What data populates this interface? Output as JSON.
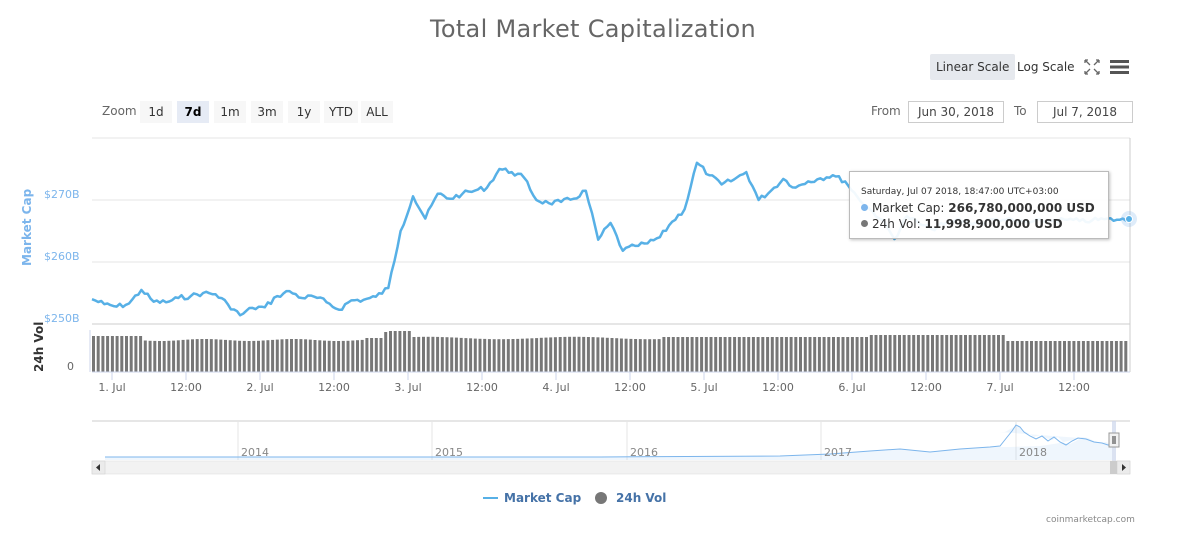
{
  "title": "Total Market Capitalization",
  "toolbar": {
    "linear_scale": "Linear Scale",
    "log_scale": "Log Scale",
    "active_scale": "Linear Scale",
    "fullscreen_icon": "fullscreen-icon",
    "menu_icon": "hamburger-menu-icon"
  },
  "range_selector": {
    "zoom_label": "Zoom",
    "buttons": [
      "1d",
      "7d",
      "1m",
      "3m",
      "1y",
      "YTD",
      "ALL"
    ],
    "active": "7d",
    "from_label": "From",
    "from_value": "Jun 30, 2018",
    "to_label": "To",
    "to_value": "Jul 7, 2018"
  },
  "tooltip": {
    "date": "Saturday, Jul 07 2018, 18:47:00 UTC+03:00",
    "market_cap_label": "Market Cap:",
    "market_cap_value": "266,780,000,000 USD",
    "vol_label": "24h Vol:",
    "vol_value": "11,998,900,000 USD"
  },
  "legend": {
    "market_cap": "Market Cap",
    "vol": "24h Vol"
  },
  "navigator": {
    "years": [
      "2014",
      "2015",
      "2016",
      "2017",
      "2018"
    ]
  },
  "credits": "coinmarketcap.com",
  "colors": {
    "market_cap": "#7cb5ec",
    "market_cap_line": "#57b0e6",
    "volume": "#777777",
    "axis_title_cap": "#7cb5ec"
  },
  "chart_data": {
    "type": "line",
    "title": "Total Market Capitalization",
    "xlabel": "",
    "ylabel": "Market Cap",
    "ylabel_secondary": "24h Vol",
    "ylim": [
      250,
      273
    ],
    "y_ticks": [
      "$250B",
      "$260B",
      "$270B"
    ],
    "y2_ticks": [
      "0"
    ],
    "x_ticks": [
      "1. Jul",
      "12:00",
      "2. Jul",
      "12:00",
      "3. Jul",
      "12:00",
      "4. Jul",
      "12:00",
      "5. Jul",
      "12:00",
      "6. Jul",
      "12:00",
      "7. Jul",
      "12:00"
    ],
    "legend": [
      "Market Cap",
      "24h Vol"
    ],
    "grid": true,
    "series": [
      {
        "name": "Market Cap (USD billions)",
        "x": [
          0,
          2,
          4,
          6,
          8,
          10,
          12,
          14,
          16,
          18,
          20,
          22,
          24,
          26,
          28,
          30,
          32,
          34,
          36,
          38,
          40,
          42,
          44,
          46,
          48,
          50,
          52,
          54,
          56,
          58,
          60,
          62,
          64,
          66,
          68,
          70,
          72,
          74,
          76,
          78,
          80,
          82,
          84,
          86,
          88,
          90,
          92,
          94,
          96,
          98,
          100,
          102,
          104,
          106,
          108,
          110,
          112,
          114,
          116,
          118,
          120,
          122,
          124,
          126,
          128,
          130,
          132,
          134,
          136,
          138,
          140,
          142,
          144,
          146,
          148,
          150,
          152,
          154,
          156,
          158,
          160,
          162,
          164,
          166,
          168
        ],
        "values": [
          254.0,
          253.2,
          252.8,
          253.3,
          255.5,
          253.6,
          253.5,
          254.2,
          254.5,
          255.0,
          254.8,
          253.2,
          251.4,
          252.6,
          252.7,
          254.5,
          255.3,
          254.2,
          254.4,
          253.5,
          252.3,
          253.8,
          253.9,
          254.4,
          255.8,
          265.0,
          270.6,
          267.0,
          271.0,
          270.2,
          271.0,
          271.5,
          272.0,
          275.0,
          274.5,
          273.6,
          270.0,
          269.5,
          269.7,
          270.2,
          271.5,
          263.6,
          266.3,
          261.8,
          262.6,
          263.0,
          264.0,
          266.5,
          268.5,
          276.0,
          274.0,
          272.5,
          273.3,
          274.5,
          270.0,
          271.5,
          273.4,
          272.0,
          273.0,
          273.5,
          274.0,
          273.0,
          270.5,
          268.5,
          266.8,
          263.7,
          267.4,
          266.2,
          265.3,
          266.1,
          266.8,
          266.5,
          266.2,
          266.9,
          266.8,
          266.5,
          266.4,
          266.6,
          266.7,
          266.8,
          266.6,
          266.7,
          266.9,
          266.8,
          266.78
        ]
      },
      {
        "name": "24h Vol (relative bar height px)",
        "values": "approximately flat ~12B USD; bars ~32-38px tall across the period with a small bump near 2 Jul 19:00"
      }
    ]
  }
}
